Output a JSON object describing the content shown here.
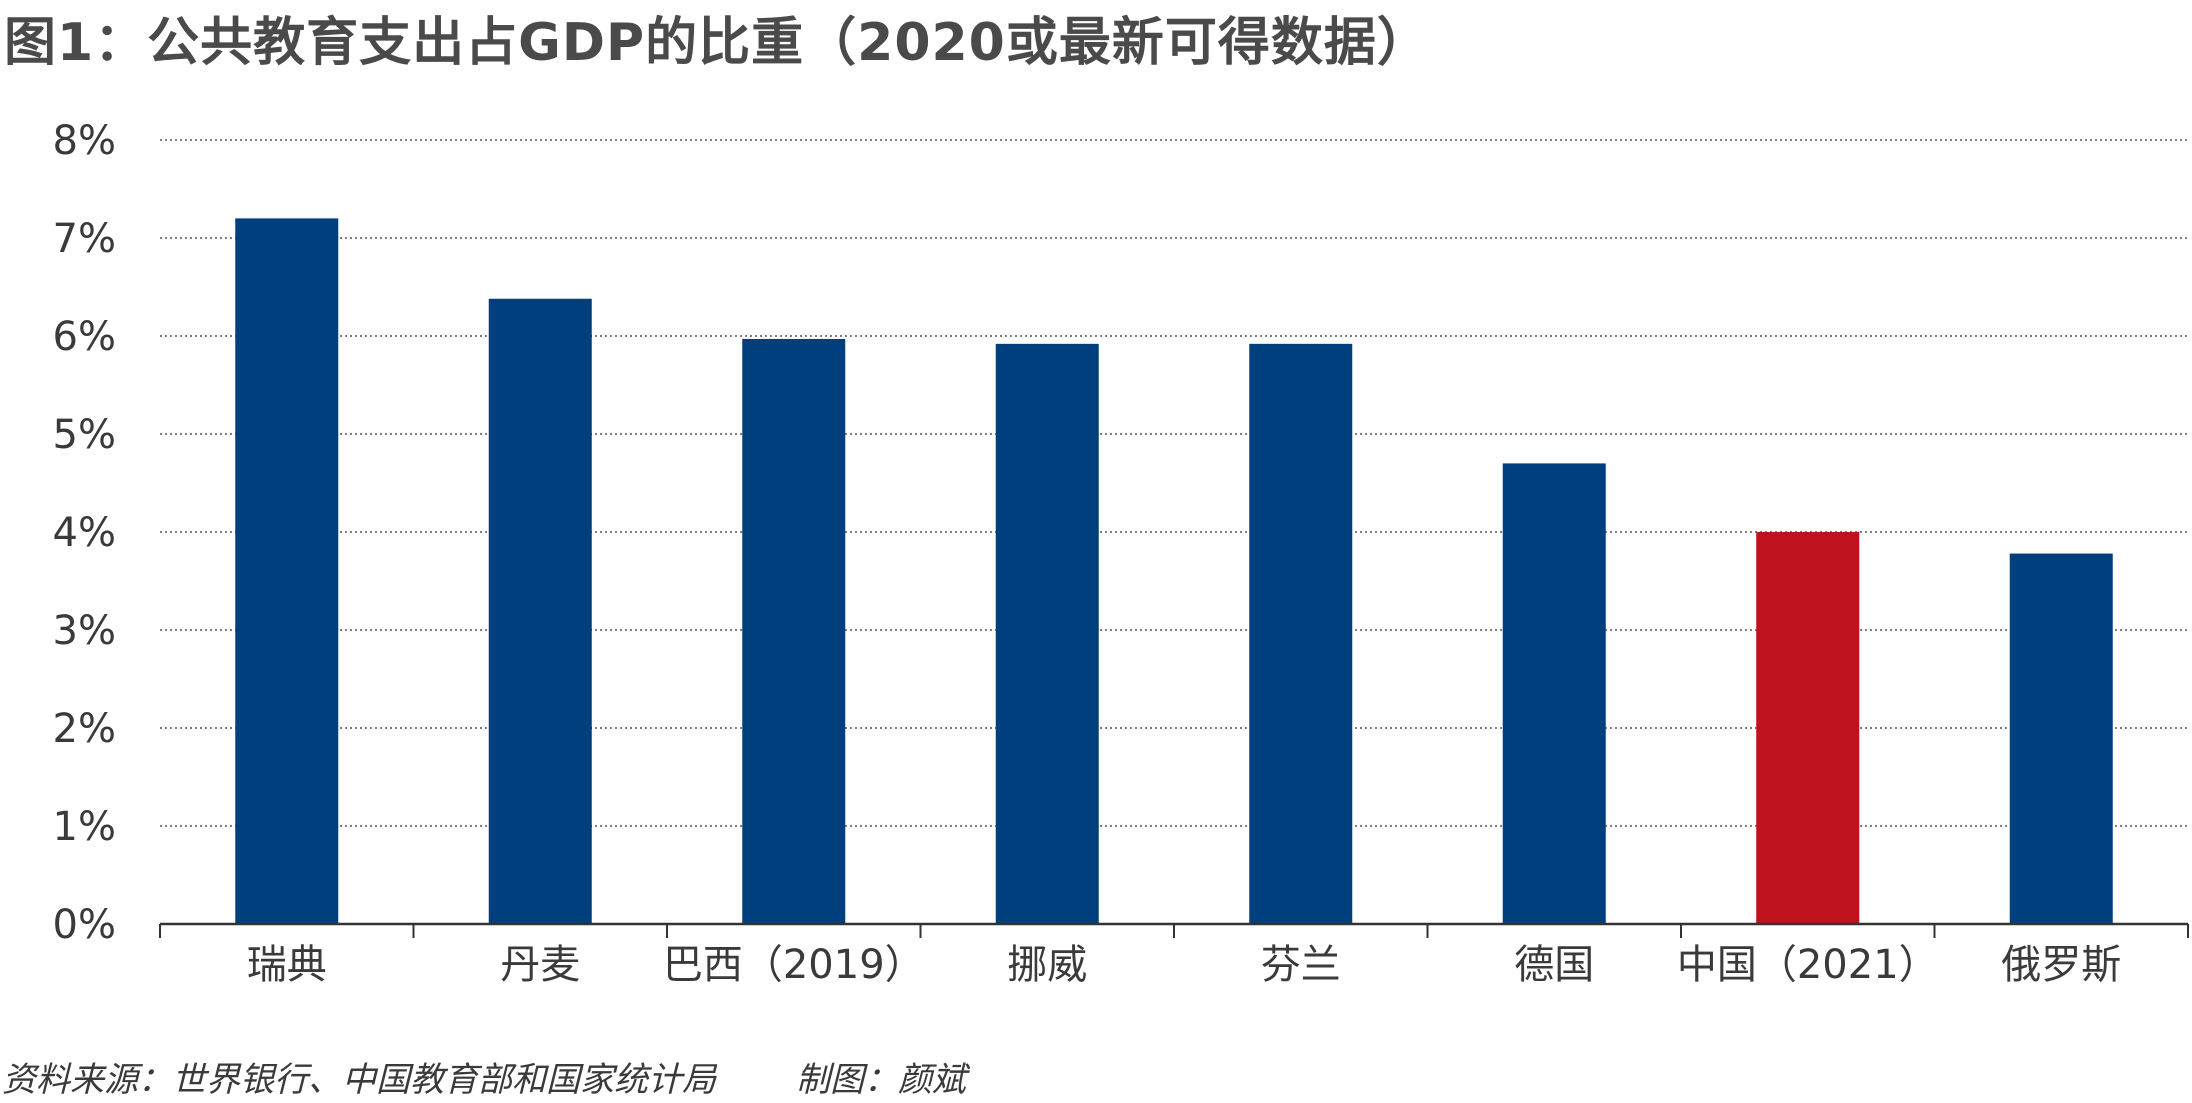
{
  "title": "图1：公共教育支出占GDP的比重（2020或最新可得数据）",
  "source": "资料来源：世界银行、中国教育部和国家统计局",
  "author": "制图：颜斌",
  "colors": {
    "bar": "#003f7d",
    "highlight": "#c0121e",
    "grid": "#555555",
    "axis": "#333333"
  },
  "chart_data": {
    "type": "bar",
    "title": "图1：公共教育支出占GDP的比重（2020或最新可得数据）",
    "xlabel": "",
    "ylabel": "",
    "ylim": [
      0,
      8
    ],
    "yticks": [
      0,
      1,
      2,
      3,
      4,
      5,
      6,
      7,
      8
    ],
    "ytick_labels": [
      "0%",
      "1%",
      "2%",
      "3%",
      "4%",
      "5%",
      "6%",
      "7%",
      "8%"
    ],
    "grid": true,
    "categories": [
      "瑞典",
      "丹麦",
      "巴西（2019）",
      "挪威",
      "芬兰",
      "德国",
      "中国（2021）",
      "俄罗斯"
    ],
    "values": [
      7.2,
      6.38,
      5.97,
      5.92,
      5.92,
      4.7,
      4.0,
      3.78
    ],
    "highlight_index": 6
  }
}
